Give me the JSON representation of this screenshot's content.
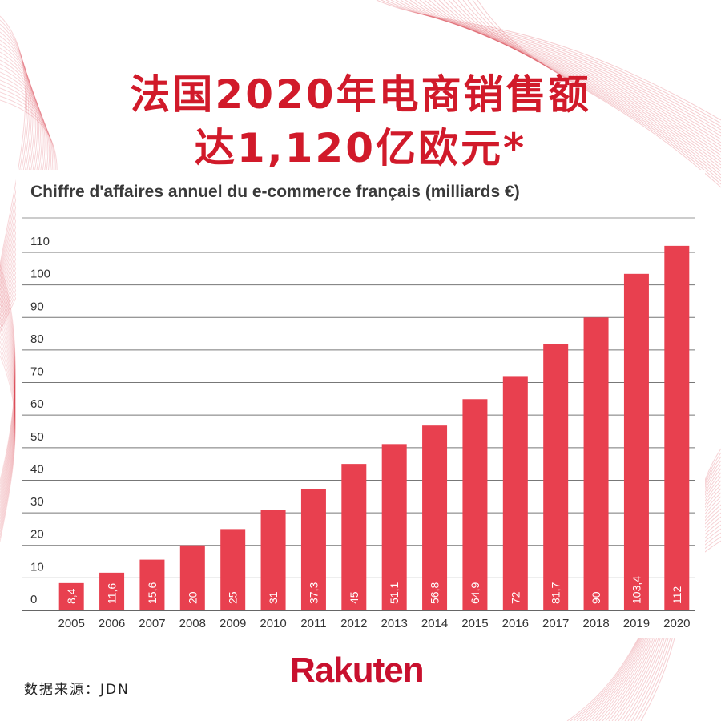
{
  "headline": {
    "line1": "法国2020年电商销售额",
    "line2": "达1,120亿欧元*"
  },
  "source": "数据来源：JDN",
  "logo_text": "Rakuten",
  "colors": {
    "accent": "#d11a2a",
    "bar": "#e8404f",
    "grid": "#666666"
  },
  "chart_data": {
    "type": "bar",
    "title": "Chiffre d'affaires annuel du e-commerce français (milliards €)",
    "categories": [
      "2005",
      "2006",
      "2007",
      "2008",
      "2009",
      "2010",
      "2011",
      "2012",
      "2013",
      "2014",
      "2015",
      "2016",
      "2017",
      "2018",
      "2019",
      "2020"
    ],
    "values": [
      8.4,
      11.6,
      15.6,
      20,
      25,
      31,
      37.3,
      45,
      51.1,
      56.8,
      64.9,
      72,
      81.7,
      90,
      103.4,
      112
    ],
    "value_labels": [
      "8,4",
      "11,6",
      "15,6",
      "20",
      "25",
      "31",
      "37,3",
      "45",
      "51,1",
      "56,8",
      "64,9",
      "72",
      "81,7",
      "90",
      "103,4",
      "112"
    ],
    "yticks": [
      "0",
      "10",
      "20",
      "30",
      "40",
      "50",
      "60",
      "70",
      "80",
      "90",
      "100",
      "110"
    ],
    "ylim": [
      0,
      110
    ],
    "grid": true,
    "xlabel": "",
    "ylabel": ""
  }
}
